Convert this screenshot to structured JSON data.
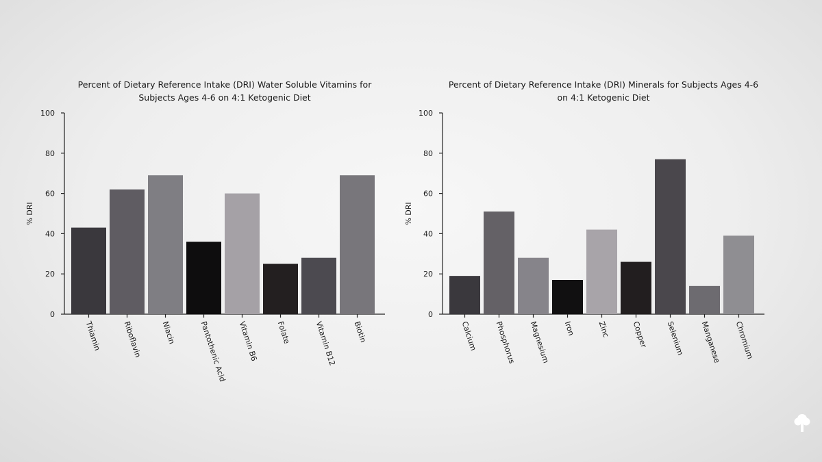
{
  "chart_data": [
    {
      "type": "bar",
      "title_lines": [
        "Percent of Dietary Reference Intake (DRI) Water Soluble Vitamins for",
        "Subjects Ages 4-6 on 4:1 Ketogenic Diet"
      ],
      "ylabel": "% DRI",
      "xlabel": "",
      "ylim": [
        0,
        100
      ],
      "yticks": [
        0,
        20,
        40,
        60,
        80,
        100
      ],
      "categories": [
        "Thiamin",
        "Riboflavin",
        "Niacin",
        "Pantothenic Acid",
        "Vitamin B6",
        "Folate",
        "Vitamin B12",
        "Biotin"
      ],
      "values": [
        43,
        62,
        69,
        36,
        60,
        25,
        28,
        69
      ],
      "colors": [
        "#3a383d",
        "#5f5c62",
        "#7f7e83",
        "#0e0d0e",
        "#a5a1a6",
        "#231f20",
        "#4c4a50",
        "#78767b"
      ],
      "grid": false,
      "legend": "none"
    },
    {
      "type": "bar",
      "title_lines": [
        "Percent of Dietary Reference Intake (DRI) Minerals for Subjects Ages 4-6",
        "on 4:1 Ketogenic Diet"
      ],
      "ylabel": "% DRI",
      "xlabel": "",
      "ylim": [
        0,
        100
      ],
      "yticks": [
        0,
        20,
        40,
        60,
        80,
        100
      ],
      "categories": [
        "Calcium",
        "Phosphorus",
        "Magnesium",
        "Iron",
        "Zinc",
        "Copper",
        "Selenium",
        "Manganese",
        "Chromium"
      ],
      "values": [
        19,
        51,
        28,
        17,
        42,
        26,
        77,
        14,
        39
      ],
      "colors": [
        "#3a383d",
        "#646166",
        "#86848a",
        "#111011",
        "#a8a4a9",
        "#221e1f",
        "#4a474c",
        "#6d6b70",
        "#8f8e92"
      ],
      "grid": false,
      "legend": "none"
    }
  ]
}
